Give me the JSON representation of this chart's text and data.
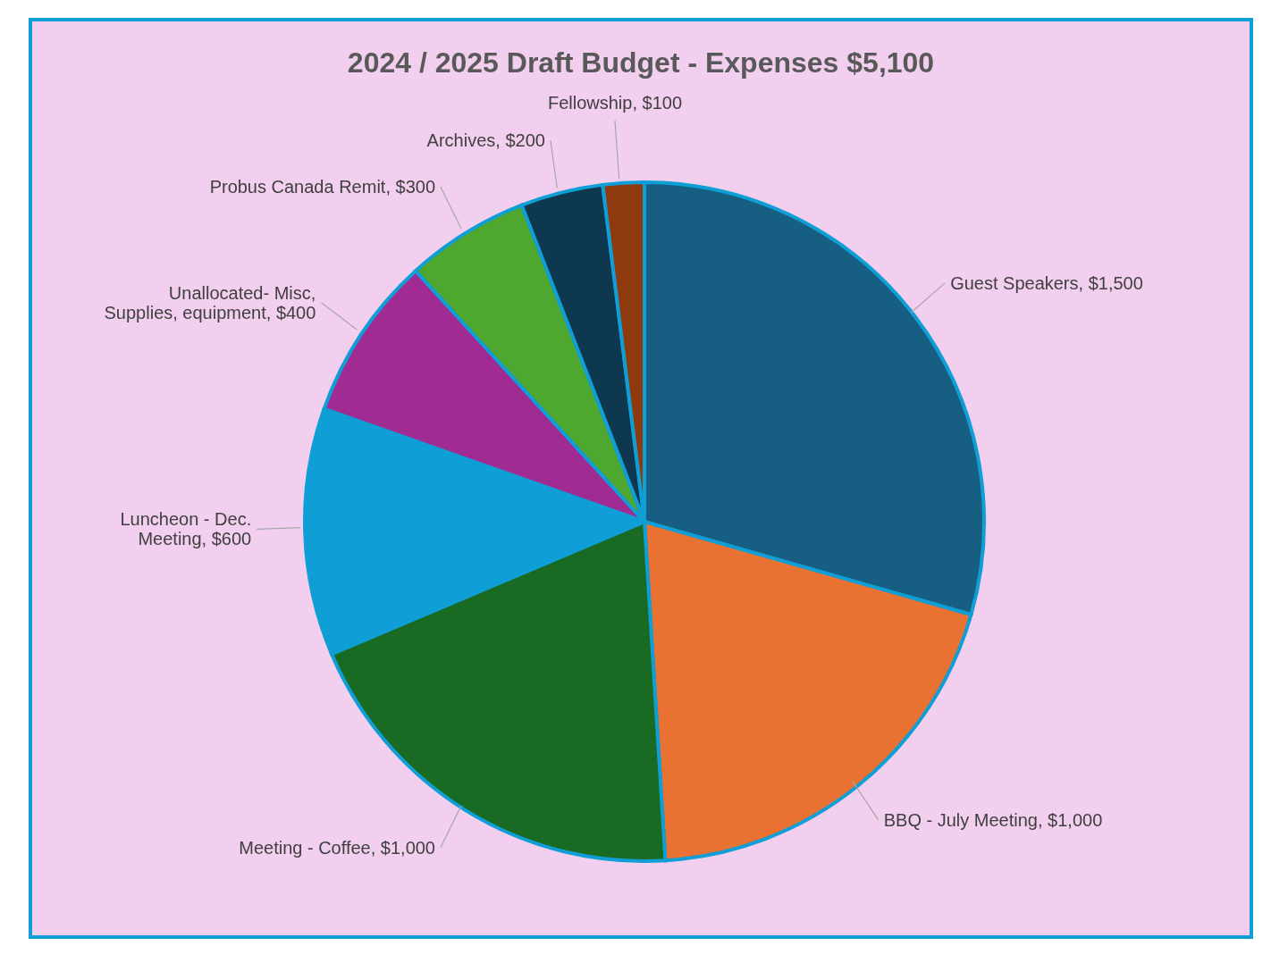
{
  "chart_data": {
    "type": "pie",
    "title": "2024 / 2025 Draft Budget - Expenses $5,100",
    "categories": [
      "Guest Speakers",
      "BBQ - July Meeting",
      "Meeting - Coffee",
      "Luncheon - Dec. Meeting",
      "Unallocated- Misc, Supplies, equipment",
      "Probus Canada Remit",
      "Archives",
      "Fellowship"
    ],
    "values": [
      1500,
      1000,
      1000,
      600,
      400,
      300,
      200,
      100
    ],
    "colors": [
      "#175f82",
      "#e97132",
      "#196b24",
      "#0f9ed5",
      "#a02b93",
      "#4ea72e",
      "#0e384f",
      "#8f3a0e"
    ],
    "value_labels": [
      "$1,500",
      "$1,000",
      "$1,000",
      "$600",
      "$400",
      "$300",
      "$200",
      "$100"
    ],
    "legend": false
  }
}
